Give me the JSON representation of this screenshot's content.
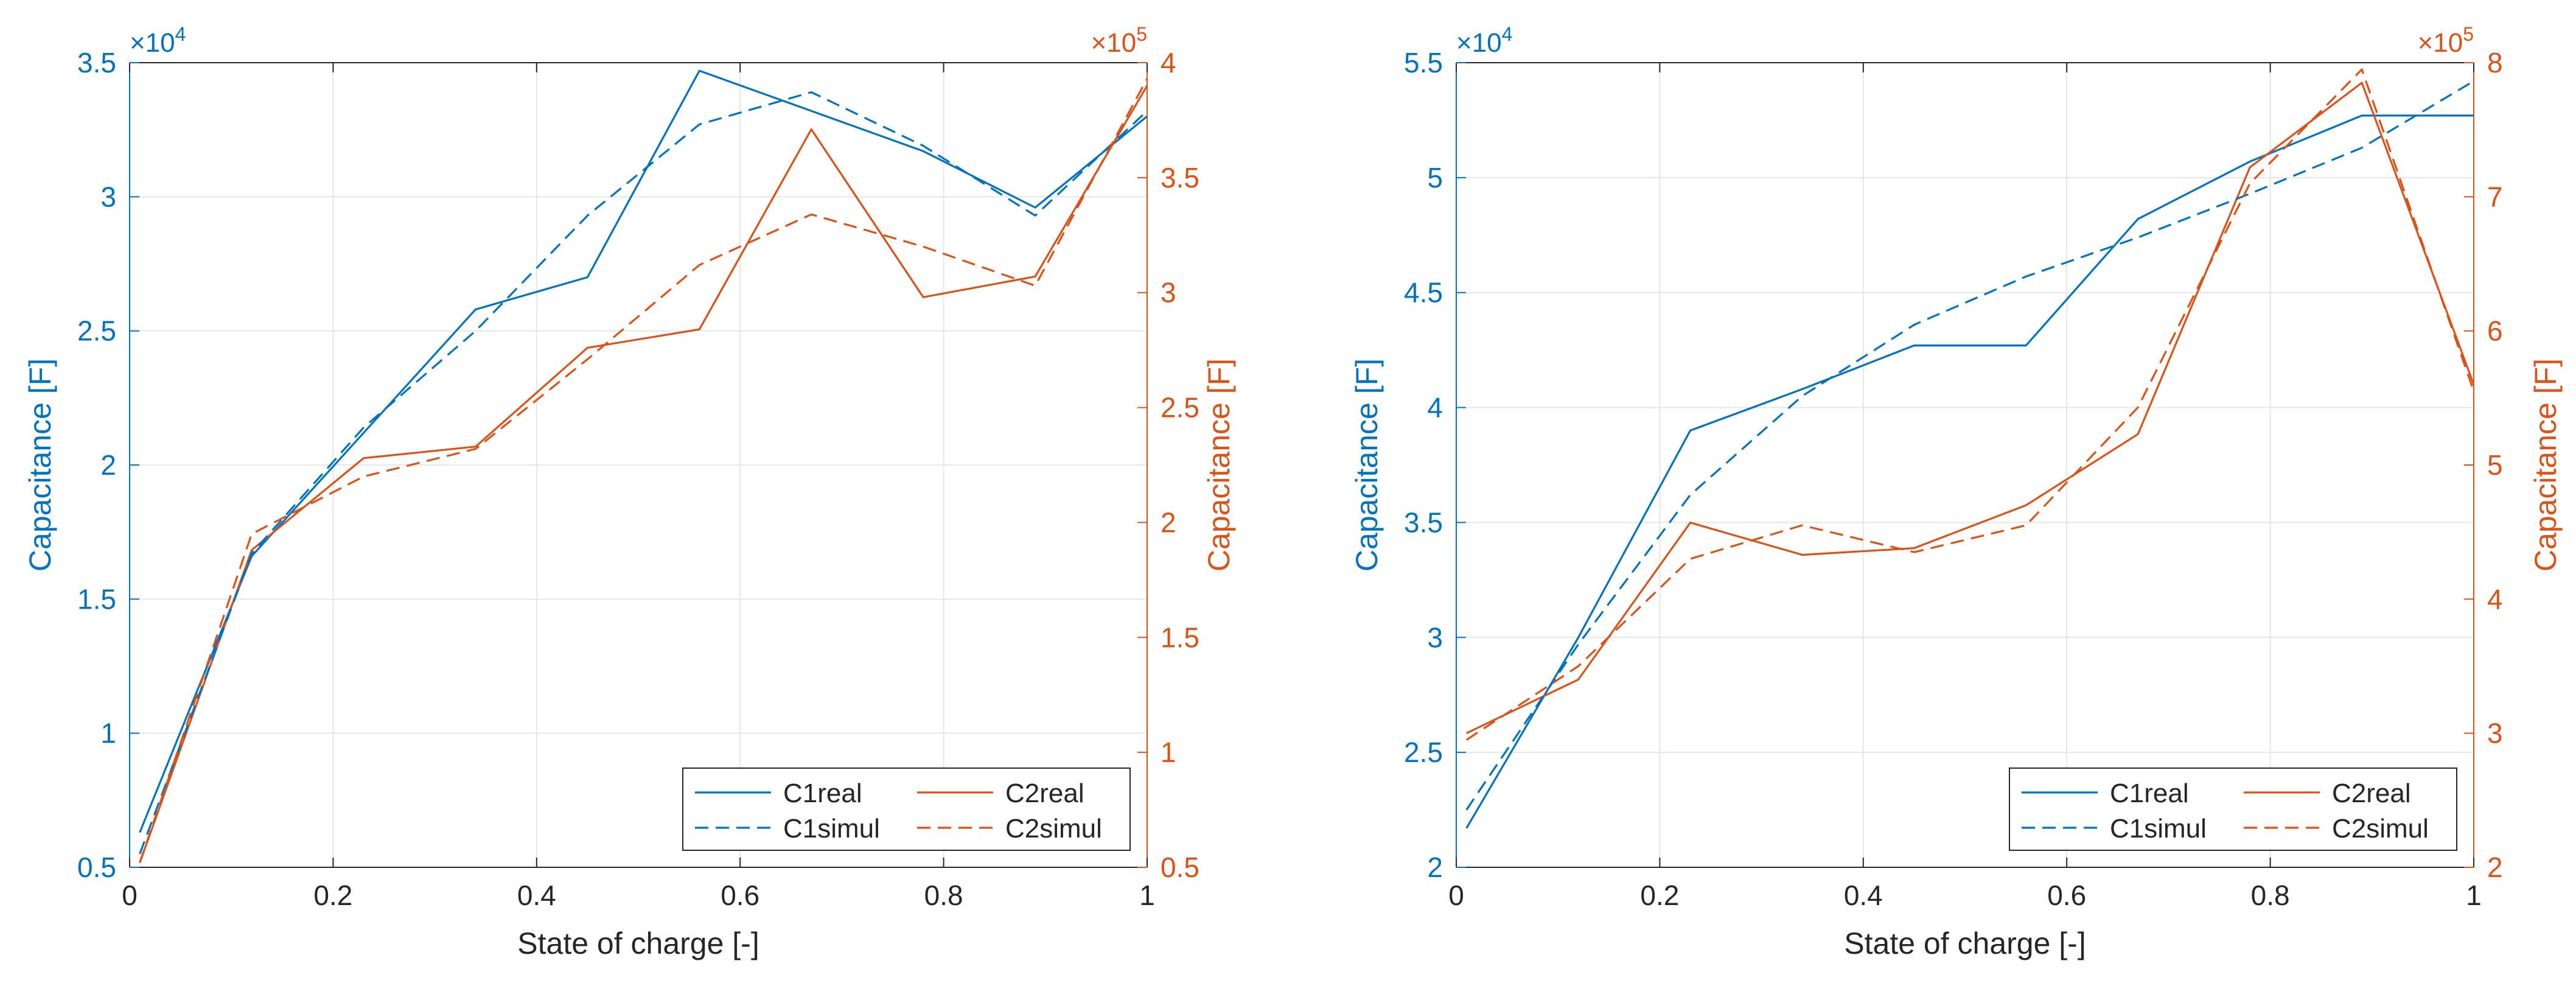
{
  "colors": {
    "c1": "#0072BD",
    "c2": "#D95319",
    "axis": "#262626",
    "grid": "#e6e6e6"
  },
  "chart_data": [
    {
      "type": "line",
      "xlabel": "State of charge [-]",
      "ylabel_left": "Capacitance [F]",
      "ylabel_right": "Capacitance [F]",
      "xlim": [
        0,
        1
      ],
      "xticks": [
        "0",
        "0.2",
        "0.4",
        "0.6",
        "0.8",
        "1"
      ],
      "ylim_left": [
        0.5,
        3.5
      ],
      "yticks_left": [
        "0.5",
        "1",
        "1.5",
        "2",
        "2.5",
        "3",
        "3.5"
      ],
      "exponent_left": "×10",
      "exponent_left_power": "4",
      "ylim_right": [
        0.5,
        4
      ],
      "yticks_right": [
        "0.5",
        "1",
        "1.5",
        "2",
        "2.5",
        "3",
        "3.5",
        "4"
      ],
      "exponent_right": "×10",
      "exponent_right_power": "5",
      "grid": true,
      "legend_position": "bottom-right",
      "x": [
        0.01,
        0.12,
        0.23,
        0.34,
        0.45,
        0.56,
        0.67,
        0.78,
        0.89,
        1.0
      ],
      "series": [
        {
          "name": "C1real",
          "axis": "left",
          "style": "solid",
          "values": [
            0.63,
            1.66,
            2.12,
            2.58,
            2.7,
            3.47,
            3.32,
            3.17,
            2.96,
            3.3
          ]
        },
        {
          "name": "C2real",
          "axis": "right",
          "style": "solid",
          "values": [
            0.52,
            1.88,
            2.28,
            2.33,
            2.76,
            2.84,
            3.71,
            2.98,
            3.07,
            3.9
          ]
        },
        {
          "name": "C1simul",
          "axis": "left",
          "style": "dashed",
          "values": [
            0.55,
            1.67,
            2.14,
            2.5,
            2.93,
            3.27,
            3.39,
            3.19,
            2.93,
            3.32
          ]
        },
        {
          "name": "C2simul",
          "axis": "right",
          "style": "dashed",
          "values": [
            0.52,
            1.95,
            2.2,
            2.32,
            2.71,
            3.12,
            3.34,
            3.2,
            3.03,
            3.93
          ]
        }
      ]
    },
    {
      "type": "line",
      "xlabel": "State of charge [-]",
      "ylabel_left": "Capacitance [F]",
      "ylabel_right": "Capacitance [F]",
      "xlim": [
        0,
        1
      ],
      "xticks": [
        "0",
        "0.2",
        "0.4",
        "0.6",
        "0.8",
        "1"
      ],
      "ylim_left": [
        2,
        5.5
      ],
      "yticks_left": [
        "2",
        "2.5",
        "3",
        "3.5",
        "4",
        "4.5",
        "5",
        "5.5"
      ],
      "exponent_left": "×10",
      "exponent_left_power": "4",
      "ylim_right": [
        2,
        8
      ],
      "yticks_right": [
        "2",
        "3",
        "4",
        "5",
        "6",
        "7",
        "8"
      ],
      "exponent_right": "×10",
      "exponent_right_power": "5",
      "grid": true,
      "legend_position": "bottom-right",
      "x": [
        0.01,
        0.12,
        0.23,
        0.34,
        0.45,
        0.56,
        0.67,
        0.78,
        0.89,
        1.0
      ],
      "series": [
        {
          "name": "C1real",
          "axis": "left",
          "style": "solid",
          "values": [
            2.17,
            3.0,
            3.9,
            4.08,
            4.27,
            4.27,
            4.82,
            5.07,
            5.27,
            5.27
          ]
        },
        {
          "name": "C2real",
          "axis": "right",
          "style": "solid",
          "values": [
            3.0,
            3.4,
            4.57,
            4.33,
            4.38,
            4.7,
            5.23,
            7.22,
            7.85,
            5.6
          ]
        },
        {
          "name": "C1simul",
          "axis": "left",
          "style": "dashed",
          "values": [
            2.25,
            2.97,
            3.62,
            4.05,
            4.36,
            4.57,
            4.74,
            4.93,
            5.13,
            5.42
          ]
        },
        {
          "name": "C2simul",
          "axis": "right",
          "style": "dashed",
          "values": [
            2.95,
            3.5,
            4.3,
            4.55,
            4.35,
            4.55,
            5.43,
            7.1,
            7.95,
            5.55
          ]
        }
      ]
    }
  ]
}
